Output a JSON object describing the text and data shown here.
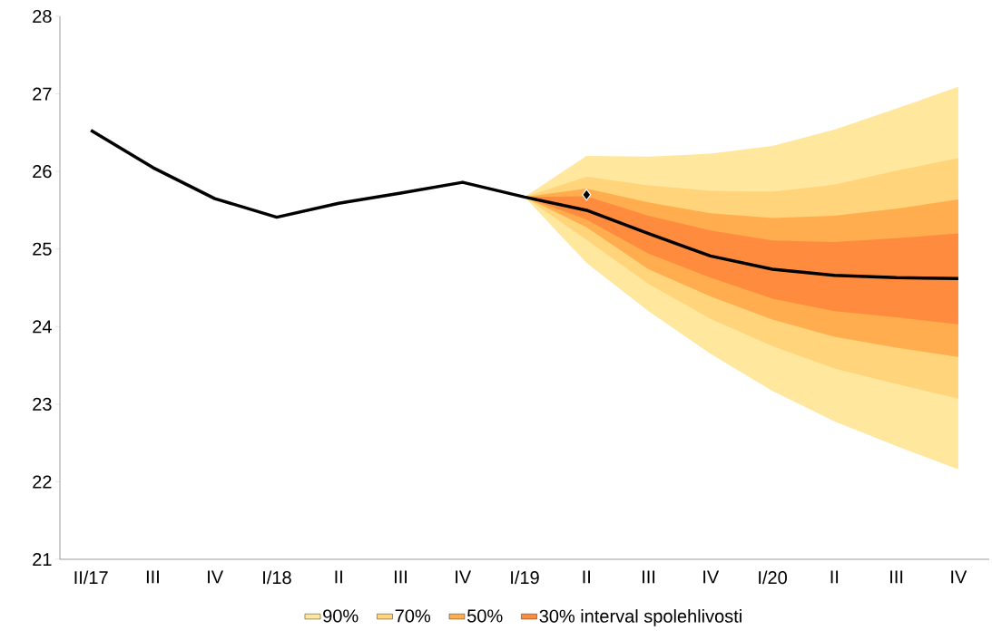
{
  "chart_data": {
    "type": "area",
    "categories": [
      "II/17",
      "III",
      "IV",
      "I/18",
      "II",
      "III",
      "IV",
      "I/19",
      "II",
      "III",
      "IV",
      "I/20",
      "II",
      "III",
      "IV"
    ],
    "series": [
      {
        "name": "90%",
        "color": "#ffe79e",
        "values": [
          null,
          null,
          null,
          null,
          null,
          null,
          null,
          null,
          null,
          null,
          null,
          null,
          null,
          null,
          null
        ],
        "lower": [
          null,
          null,
          null,
          null,
          null,
          null,
          null,
          25.67,
          24.82,
          24.2,
          23.65,
          23.17,
          22.78,
          22.46,
          22.16
        ],
        "upper": [
          null,
          null,
          null,
          null,
          null,
          null,
          null,
          25.67,
          26.2,
          26.19,
          26.23,
          26.33,
          26.54,
          26.81,
          27.09
        ]
      },
      {
        "name": "70%",
        "color": "#ffd47a",
        "values": [
          null,
          null,
          null,
          null,
          null,
          null,
          null,
          null,
          null,
          null,
          null,
          null,
          null,
          null,
          null
        ],
        "lower": [
          null,
          null,
          null,
          null,
          null,
          null,
          null,
          25.67,
          25.12,
          24.55,
          24.1,
          23.75,
          23.46,
          23.26,
          23.07
        ],
        "upper": [
          null,
          null,
          null,
          null,
          null,
          null,
          null,
          25.67,
          25.93,
          25.82,
          25.75,
          25.74,
          25.83,
          26.01,
          26.17
        ]
      },
      {
        "name": "50%",
        "color": "#ffad4f",
        "values": [
          null,
          null,
          null,
          null,
          null,
          null,
          null,
          null,
          null,
          null,
          null,
          null,
          null,
          null,
          null
        ],
        "lower": [
          null,
          null,
          null,
          null,
          null,
          null,
          null,
          25.67,
          25.28,
          24.74,
          24.39,
          24.09,
          23.87,
          23.73,
          23.61
        ],
        "upper": [
          null,
          null,
          null,
          null,
          null,
          null,
          null,
          25.67,
          25.78,
          25.6,
          25.46,
          25.4,
          25.43,
          25.52,
          25.64
        ]
      },
      {
        "name": "30% interval spolehlivosti",
        "color": "#ff8c3e",
        "values": [
          null,
          null,
          null,
          null,
          null,
          null,
          null,
          null,
          null,
          null,
          null,
          null,
          null,
          null,
          null
        ],
        "lower": [
          null,
          null,
          null,
          null,
          null,
          null,
          null,
          25.67,
          25.38,
          24.94,
          24.63,
          24.36,
          24.2,
          24.12,
          24.03
        ],
        "upper": [
          null,
          null,
          null,
          null,
          null,
          null,
          null,
          25.67,
          25.68,
          25.43,
          25.24,
          25.11,
          25.09,
          25.14,
          25.2
        ]
      },
      {
        "type": "line",
        "color": "#000000",
        "values": [
          26.53,
          26.05,
          25.65,
          25.41,
          25.59,
          25.72,
          25.86,
          25.67,
          25.5,
          25.2,
          24.91,
          24.74,
          24.66,
          24.63,
          24.62
        ]
      },
      {
        "type": "scatter",
        "color": "#000000",
        "marker": "diamond",
        "values": [
          null,
          null,
          null,
          null,
          null,
          null,
          null,
          null,
          25.7,
          null,
          null,
          null,
          null,
          null,
          null
        ]
      }
    ],
    "ylim": [
      21,
      28
    ],
    "yticks": [
      21,
      22,
      23,
      24,
      25,
      26,
      27,
      28
    ],
    "grid": false,
    "legend": "bottom"
  }
}
